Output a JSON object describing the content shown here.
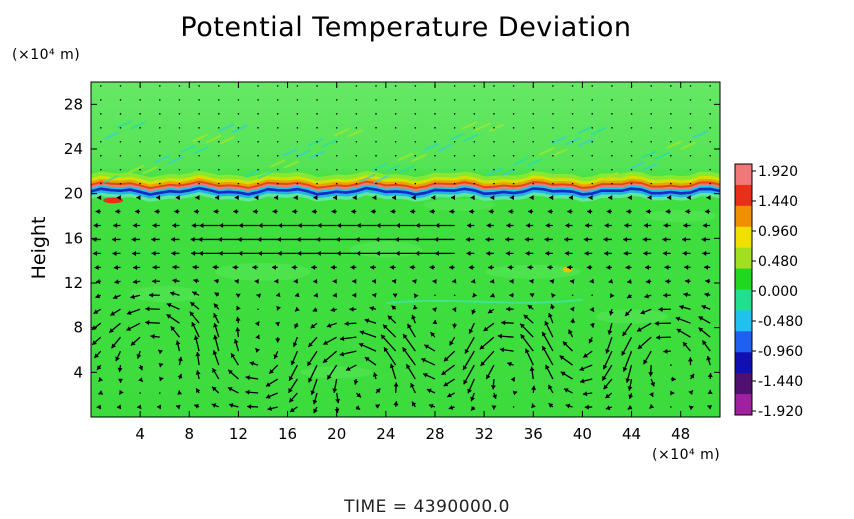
{
  "chart_data": {
    "type": "heatmap",
    "title": "Potential Temperature Deviation",
    "xlabel": "",
    "ylabel": "Height",
    "x_unit": "(×10⁴ m)",
    "y_unit": "(×10⁴ m)",
    "footer": "TIME = 4390000.0",
    "xlim": [
      0,
      51.2
    ],
    "ylim": [
      0,
      30
    ],
    "x_ticks": [
      4,
      8,
      12,
      16,
      20,
      24,
      28,
      32,
      36,
      40,
      44,
      48
    ],
    "y_ticks": [
      4,
      8,
      12,
      16,
      20,
      24,
      28
    ],
    "colorbar": {
      "ticks": [
        "1.920",
        "1.440",
        "0.960",
        "0.480",
        "0.000",
        "-0.480",
        "-0.960",
        "-1.440",
        "-1.920"
      ],
      "colors": [
        "#f07878",
        "#e83018",
        "#f09000",
        "#f0e000",
        "#a0e020",
        "#20d820",
        "#20e090",
        "#20c0f0",
        "#2060f0",
        "#1010b0",
        "#501070",
        "#a020a0"
      ]
    },
    "field": {
      "background": "#3fe03f",
      "upper_tint": "#6fe86f",
      "tropopause_height": 20.3,
      "features": [
        {
          "kind": "positive_band",
          "y_center": 20.6,
          "half_width": 0.6,
          "peak": 1.9
        },
        {
          "kind": "negative_band",
          "y_center": 20.0,
          "half_width": 0.35,
          "peak": -1.9
        },
        {
          "kind": "wave_ripples",
          "x_range": [
            1,
            50
          ],
          "y_range": [
            21,
            26
          ],
          "amplitude": 0.5
        }
      ]
    },
    "vector_field": {
      "description": "wind vectors overlaid",
      "color": "#000000"
    }
  }
}
